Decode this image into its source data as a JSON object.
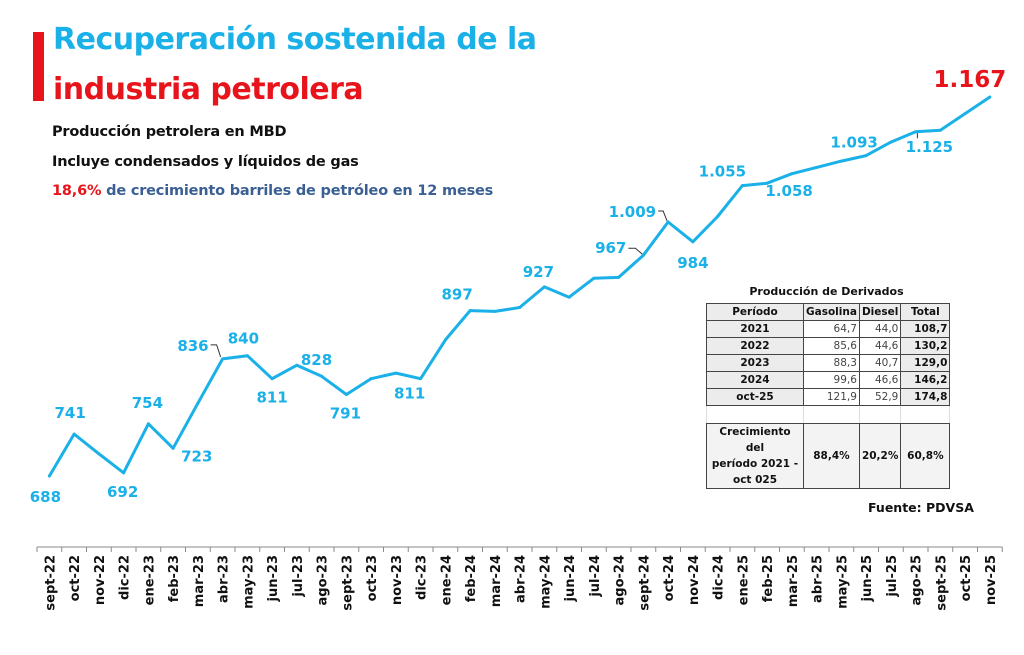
{
  "header": {
    "title_line1": "Recuperación sostenida de la",
    "title_line2": "industria petrolera",
    "subtitle1": "Producción petrolera en MBD",
    "subtitle2": "Incluye condensados y líquidos de gas",
    "growth_pct": "18,6%",
    "growth_text": " de crecimiento barriles de petróleo en 12 meses"
  },
  "colors": {
    "line": "#1ab0e8",
    "title_blue": "#1ab0e8",
    "title_red": "#e8141b",
    "highlight_red": "#e8141b"
  },
  "chart_data": {
    "type": "line",
    "title": "Producción petrolera en MBD",
    "xlabel": "",
    "ylabel": "",
    "grid": false,
    "categories": [
      "sept-22",
      "oct-22",
      "nov-22",
      "dic-22",
      "ene-23",
      "feb-23",
      "mar-23",
      "abr-23",
      "may-23",
      "jun-23",
      "jul-23",
      "ago-23",
      "sept-23",
      "oct-23",
      "nov-23",
      "dic-23",
      "ene-24",
      "feb-24",
      "mar-24",
      "abr-24",
      "may-24",
      "jun-24",
      "jul-24",
      "ago-24",
      "sept-24",
      "oct-24",
      "nov-24",
      "dic-24",
      "ene-25",
      "feb-25",
      "mar-25",
      "abr-25",
      "may-25",
      "jun-25",
      "jul-25",
      "ago-25",
      "sept-25",
      "oct-25",
      "nov-25"
    ],
    "series": [
      {
        "name": "Producción petrolera (MBD)",
        "values": [
          688,
          741,
          716,
          692,
          754,
          723,
          780,
          836,
          840,
          811,
          828,
          814,
          791,
          811,
          818,
          811,
          860,
          897,
          896,
          901,
          927,
          914,
          938,
          939,
          967,
          1009,
          984,
          1016,
          1055,
          1058,
          1070,
          1078,
          1086,
          1093,
          1110,
          1123,
          1125,
          1146,
          1167
        ]
      }
    ],
    "data_labels": [
      {
        "index": 0,
        "text": "688"
      },
      {
        "index": 1,
        "text": "741"
      },
      {
        "index": 3,
        "text": "692"
      },
      {
        "index": 4,
        "text": "754"
      },
      {
        "index": 5,
        "text": "723"
      },
      {
        "index": 7,
        "text": "836"
      },
      {
        "index": 8,
        "text": "840"
      },
      {
        "index": 9,
        "text": "811"
      },
      {
        "index": 10,
        "text": "828"
      },
      {
        "index": 12,
        "text": "791"
      },
      {
        "index": 15,
        "text": "811"
      },
      {
        "index": 17,
        "text": "897"
      },
      {
        "index": 20,
        "text": "927"
      },
      {
        "index": 24,
        "text": "967"
      },
      {
        "index": 25,
        "text": "1.009"
      },
      {
        "index": 26,
        "text": "984"
      },
      {
        "index": 28,
        "text": "1.055"
      },
      {
        "index": 29,
        "text": "1.058"
      },
      {
        "index": 33,
        "text": "1.093"
      },
      {
        "index": 36,
        "text": "1.125"
      },
      {
        "index": 38,
        "text": "1.167"
      }
    ],
    "ylim": [
      688,
      1167
    ]
  },
  "derivatives_table": {
    "title": "Producción de Derivados",
    "headers": [
      "Período",
      "Gasolina",
      "Diesel",
      "Total"
    ],
    "rows": [
      [
        "2021",
        "64,7",
        "44,0",
        "108,7"
      ],
      [
        "2022",
        "85,6",
        "44,6",
        "130,2"
      ],
      [
        "2023",
        "88,3",
        "40,7",
        "129,0"
      ],
      [
        "2024",
        "99,6",
        "46,6",
        "146,2"
      ],
      [
        "oct-25",
        "121,9",
        "52,9",
        "174,8"
      ]
    ],
    "growth": {
      "label_line1": "Crecimiento del",
      "label_line2": "período 2021 -",
      "label_line3": "oct 025",
      "gasolina": "88,4%",
      "diesel": "20,2%",
      "total": "60,8%"
    }
  },
  "source": "Fuente: PDVSA"
}
